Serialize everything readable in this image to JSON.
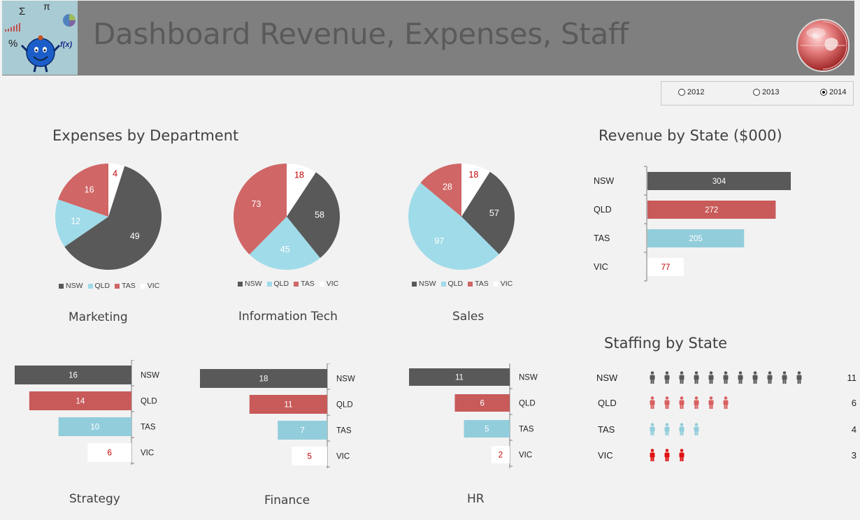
{
  "header": {
    "title": "Dashboard Revenue, Expenses, Staff"
  },
  "logo": {
    "glyphs": [
      "Σ",
      "π",
      "%",
      "f(x)"
    ]
  },
  "year_selector": {
    "options": [
      {
        "label": "2012",
        "selected": false
      },
      {
        "label": "2013",
        "selected": false
      },
      {
        "label": "2014",
        "selected": true
      }
    ]
  },
  "colors": {
    "NSW": "#595959",
    "QLD": "#a0dbe9",
    "TAS": "#d06666",
    "VIC": "#ffffff",
    "bar_QLD": "#c85a5a",
    "bar_TAS": "#92cddc",
    "vic_label": "#c00000",
    "staff_VIC": "#e01010",
    "staff_QLD": "#d96060",
    "staff_TAS": "#92cddc",
    "staff_NSW": "#595959"
  },
  "sections": {
    "expenses": "Expenses by Department",
    "revenue": "Revenue by State ($000)",
    "staffing": "Staffing by State"
  },
  "chart_data": [
    {
      "type": "pie",
      "title": "Marketing",
      "categories": [
        "NSW",
        "QLD",
        "TAS",
        "VIC"
      ],
      "values": [
        49,
        12,
        16,
        4
      ]
    },
    {
      "type": "pie",
      "title": "Information Tech",
      "categories": [
        "NSW",
        "QLD",
        "TAS",
        "VIC"
      ],
      "values": [
        58,
        45,
        73,
        18
      ]
    },
    {
      "type": "pie",
      "title": "Sales",
      "categories": [
        "NSW",
        "QLD",
        "TAS",
        "VIC"
      ],
      "values": [
        57,
        97,
        28,
        18
      ]
    },
    {
      "type": "bar",
      "title": "Strategy",
      "categories": [
        "NSW",
        "QLD",
        "TAS",
        "VIC"
      ],
      "values": [
        16,
        14,
        10,
        6
      ]
    },
    {
      "type": "bar",
      "title": "Finance",
      "categories": [
        "NSW",
        "QLD",
        "TAS",
        "VIC"
      ],
      "values": [
        18,
        11,
        7,
        5
      ]
    },
    {
      "type": "bar",
      "title": "HR",
      "categories": [
        "NSW",
        "QLD",
        "TAS",
        "VIC"
      ],
      "values": [
        11,
        6,
        5,
        2
      ]
    },
    {
      "type": "bar",
      "title": "Revenue by State ($000)",
      "categories": [
        "NSW",
        "QLD",
        "TAS",
        "VIC"
      ],
      "values": [
        304,
        272,
        205,
        77
      ]
    },
    {
      "type": "table",
      "title": "Staffing by State",
      "categories": [
        "NSW",
        "QLD",
        "TAS",
        "VIC"
      ],
      "values": [
        11,
        6,
        4,
        3
      ]
    }
  ]
}
